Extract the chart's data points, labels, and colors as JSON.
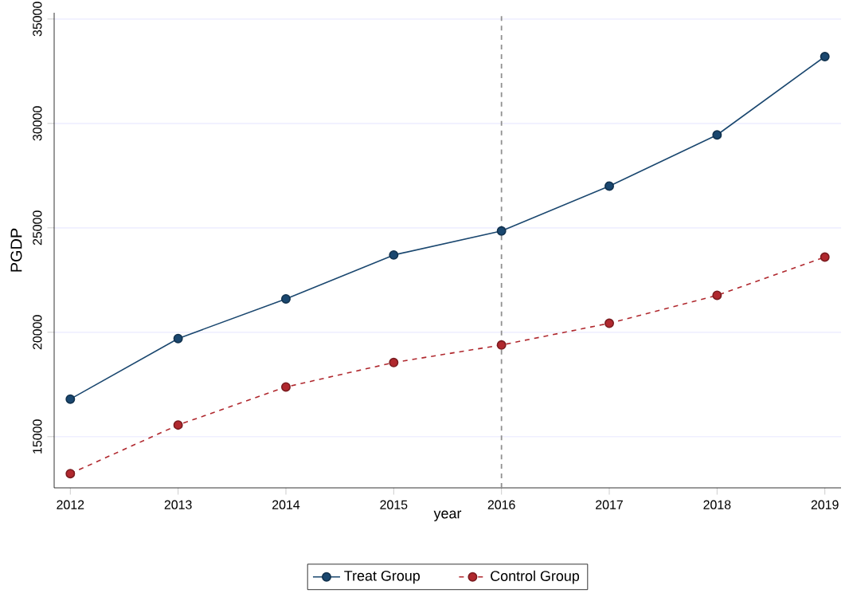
{
  "chart_data": {
    "type": "line",
    "xlabel": "year",
    "ylabel": "PGDP",
    "x": [
      2012,
      2013,
      2014,
      2015,
      2016,
      2017,
      2018,
      2019
    ],
    "series": [
      {
        "name": "Treat Group",
        "color": "#1a476f",
        "line_style": "solid",
        "values": [
          16800,
          19700,
          21600,
          23700,
          24850,
          27000,
          29450,
          33200
        ]
      },
      {
        "name": "Control Group",
        "color": "#b0282e",
        "line_style": "dashed",
        "values": [
          13230,
          15560,
          17380,
          18550,
          19390,
          20430,
          21770,
          23600
        ]
      }
    ],
    "xlim": [
      2011.85,
      2019.15
    ],
    "xticks": [
      2012,
      2013,
      2014,
      2015,
      2016,
      2017,
      2018,
      2019
    ],
    "ylim": [
      12550,
      35300
    ],
    "yticks": [
      15000,
      20000,
      25000,
      30000,
      35000
    ],
    "ref_lines": [
      {
        "axis": "x",
        "value": 2016,
        "color": "#909090",
        "line_style": "dashed"
      }
    ],
    "grid": "y",
    "legend": "bottom",
    "marker": "circle"
  }
}
